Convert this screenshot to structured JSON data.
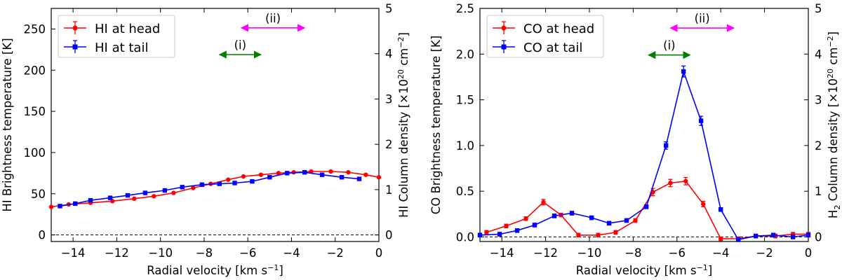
{
  "chart_data": [
    {
      "type": "line",
      "xlabel_main": "Radial velocity [km s",
      "xlabel_sup": "−1",
      "xlabel_end": "]",
      "ylabel": "HI Brightness temperature [K]",
      "y2label_main": "HI Column density [×10",
      "y2label_sup": "20",
      "y2label_mid": " cm",
      "y2label_sup2": "−2",
      "y2label_end": "]",
      "xlim": [
        -15,
        0
      ],
      "ylim": [
        -8,
        275
      ],
      "y2lim": [
        -0.1455,
        5.0
      ],
      "xticks": [
        -14,
        -12,
        -10,
        -8,
        -6,
        -4,
        -2,
        0
      ],
      "xtick_labels": [
        "−14",
        "−12",
        "−10",
        "−8",
        "−6",
        "−4",
        "−2",
        "0"
      ],
      "yticks": [
        0,
        50,
        100,
        150,
        200,
        250
      ],
      "ytick_labels": [
        "0",
        "50",
        "100",
        "150",
        "200",
        "250"
      ],
      "y2ticks": [
        0,
        1,
        2,
        3,
        4,
        5
      ],
      "y2tick_labels": [
        "0",
        "1",
        "2",
        "3",
        "4",
        "5"
      ],
      "zero_line": true,
      "legend_position": "top-left",
      "series": [
        {
          "name": "HI at head",
          "color": "#ff0000",
          "marker": "circle",
          "x": [
            -15,
            -14.2,
            -13.2,
            -12.2,
            -11.2,
            -10.3,
            -9.4,
            -8.5,
            -7.7,
            -6.9,
            -6.2,
            -5.4,
            -4.6,
            -3.9,
            -3.1,
            -2.2,
            -1.4,
            -0.6,
            0
          ],
          "y": [
            34,
            37,
            39,
            41,
            44,
            47,
            51,
            57,
            62,
            67,
            71,
            73,
            75,
            76,
            77,
            77,
            76,
            73,
            70
          ]
        },
        {
          "name": "HI at tail",
          "color": "#0000ff",
          "marker": "square",
          "x": [
            -14.6,
            -13.9,
            -13.2,
            -12.3,
            -11.5,
            -10.7,
            -9.8,
            -9.0,
            -8.1,
            -7.3,
            -6.6,
            -5.8,
            -5.0,
            -4.2,
            -3.4,
            -2.6,
            -1.7,
            -0.9
          ],
          "y": [
            35,
            38,
            42,
            45,
            48,
            51,
            54,
            58,
            61,
            62,
            63,
            65,
            70,
            75,
            76,
            73,
            70,
            68
          ]
        }
      ],
      "annotations": [
        {
          "label": "(i)",
          "color": "#008000",
          "x1": -7.3,
          "x2": -5.4,
          "y": 3.98
        },
        {
          "label": "(ii)",
          "color": "#ff00ff",
          "x1": -6.3,
          "x2": -3.4,
          "y": 4.57
        }
      ]
    },
    {
      "type": "line",
      "xlabel_main": "Radial velocity [km s",
      "xlabel_sup": "−1",
      "xlabel_end": "]",
      "ylabel": "CO Brightness temperature [K]",
      "y2label_pre": "H",
      "y2label_sub": "2",
      "y2label_main": " Column density [×10",
      "y2label_sup": "20",
      "y2label_mid": " cm",
      "y2label_sup2": "−2",
      "y2label_end": "]",
      "xlim": [
        -15,
        0
      ],
      "ylim": [
        -0.05,
        2.5
      ],
      "y2lim": [
        -0.1,
        5.0
      ],
      "xticks": [
        -14,
        -12,
        -10,
        -8,
        -6,
        -4,
        -2,
        0
      ],
      "xtick_labels": [
        "−14",
        "−12",
        "−10",
        "−8",
        "−6",
        "−4",
        "−2",
        "0"
      ],
      "yticks": [
        0,
        0.5,
        1.0,
        1.5,
        2.0,
        2.5
      ],
      "ytick_labels": [
        "0.0",
        "0.5",
        "1.0",
        "1.5",
        "2.0",
        "2.5"
      ],
      "y2ticks": [
        0,
        1,
        2,
        3,
        4,
        5
      ],
      "y2tick_labels": [
        "0",
        "1",
        "2",
        "3",
        "4",
        "5"
      ],
      "zero_line": true,
      "legend_position": "top-left",
      "series": [
        {
          "name": "CO at head",
          "color": "#ff0000",
          "marker": "circle",
          "x": [
            -14.7,
            -13.8,
            -12.9,
            -12.1,
            -11.3,
            -10.5,
            -9.6,
            -8.8,
            -7.9,
            -7.1,
            -6.3,
            -5.6,
            -4.8,
            -4.0,
            -3.2,
            -2.4,
            -1.5,
            -0.7,
            0
          ],
          "y": [
            0.05,
            0.12,
            0.2,
            0.38,
            0.24,
            0.02,
            0.02,
            0.05,
            0.18,
            0.49,
            0.59,
            0.61,
            0.36,
            -0.02,
            -0.02,
            0.01,
            0.01,
            0.03,
            0.03
          ],
          "err": [
            0.02,
            0.02,
            0.02,
            0.03,
            0.02,
            0.02,
            0.02,
            0.02,
            0.02,
            0.04,
            0.04,
            0.04,
            0.03,
            0.02,
            0.02,
            0.02,
            0.02,
            0.02,
            0.02
          ]
        },
        {
          "name": "CO at tail",
          "color": "#0000ff",
          "marker": "square",
          "x": [
            -15,
            -14.1,
            -13.3,
            -12.5,
            -11.6,
            -10.8,
            -9.9,
            -9.1,
            -8.3,
            -7.4,
            -6.5,
            -5.7,
            -4.9,
            -4.0,
            -3.2,
            -2.4,
            -1.6,
            -0.7,
            0
          ],
          "y": [
            0.02,
            0.03,
            0.07,
            0.13,
            0.23,
            0.26,
            0.21,
            0.15,
            0.18,
            0.33,
            1.0,
            1.81,
            1.27,
            0.3,
            -0.03,
            0.01,
            0.02,
            0.0,
            0.02
          ],
          "err": [
            0.02,
            0.02,
            0.02,
            0.02,
            0.02,
            0.02,
            0.02,
            0.02,
            0.02,
            0.02,
            0.04,
            0.06,
            0.05,
            0.02,
            0.02,
            0.02,
            0.02,
            0.02,
            0.02
          ]
        }
      ],
      "annotations": [
        {
          "label": "(i)",
          "color": "#008000",
          "x1": -7.3,
          "x2": -5.4,
          "y": 3.98
        },
        {
          "label": "(ii)",
          "color": "#ff00ff",
          "x1": -6.3,
          "x2": -3.4,
          "y": 4.57
        }
      ]
    }
  ]
}
